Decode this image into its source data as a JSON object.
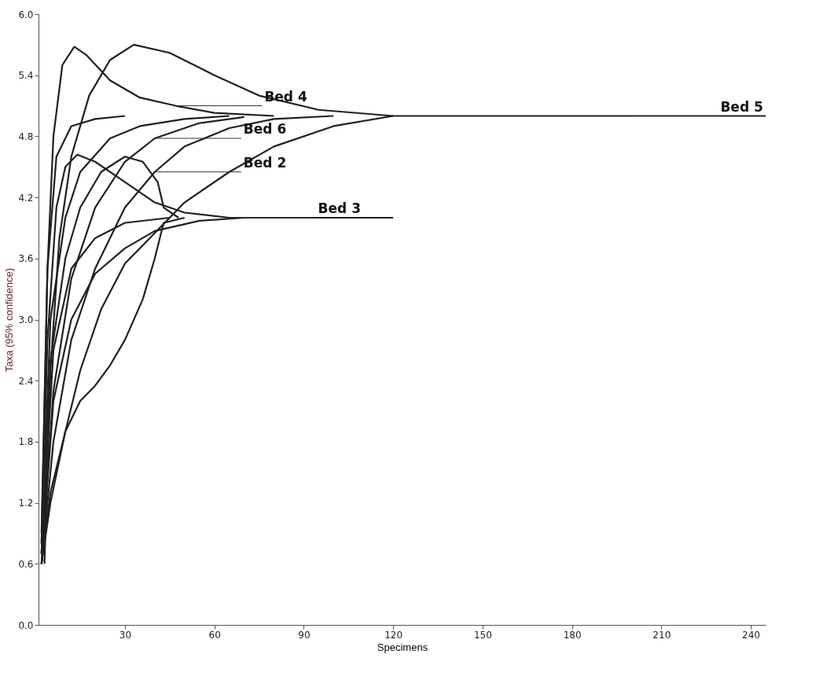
{
  "chart_data": {
    "type": "line",
    "xlabel": "Specimens",
    "ylabel": "Taxa (95% confidence)",
    "xlim": [
      1,
      245
    ],
    "ylim": [
      0,
      6
    ],
    "xticks": [
      30,
      60,
      90,
      120,
      150,
      180,
      210,
      240
    ],
    "yticks": [
      {
        "value": 0,
        "label": "0.0"
      },
      {
        "value": 0.6,
        "label": "0.6"
      },
      {
        "value": 1.2,
        "label": "1.2"
      },
      {
        "value": 1.8,
        "label": "1.8"
      },
      {
        "value": 2.4,
        "label": "2.4"
      },
      {
        "value": 3,
        "label": "3.0"
      },
      {
        "value": 3.6,
        "label": "3.6"
      },
      {
        "value": 4.2,
        "label": "4.2"
      },
      {
        "value": 4.8,
        "label": "4.8"
      },
      {
        "value": 5.4,
        "label": "5.4"
      },
      {
        "value": 6,
        "label": "6.0"
      }
    ],
    "grid": false,
    "legend": false,
    "marker": "none",
    "line_style": "solid",
    "series": [
      {
        "color": "#202020",
        "x": [
          2,
          4,
          6,
          9,
          13,
          17,
          25,
          35,
          47,
          60,
          80
        ],
        "values": [
          0.8,
          3.5,
          4.8,
          5.5,
          5.68,
          5.6,
          5.35,
          5.18,
          5.1,
          5.03,
          5.0
        ]
      },
      {
        "color": "#202020",
        "x": [
          3,
          5,
          8,
          12,
          18,
          25,
          33,
          45,
          60,
          75,
          95,
          120
        ],
        "values": [
          0.6,
          2.5,
          3.8,
          4.6,
          5.2,
          5.55,
          5.7,
          5.62,
          5.4,
          5.2,
          5.06,
          5.0
        ]
      },
      {
        "color": "#202020",
        "x": [
          2,
          4,
          7,
          10,
          14,
          20,
          30,
          40,
          50,
          65,
          120
        ],
        "values": [
          0.8,
          2.8,
          4.1,
          4.5,
          4.62,
          4.55,
          4.35,
          4.15,
          4.05,
          4.0,
          4.0
        ]
      },
      {
        "color": "#202020",
        "x": [
          2,
          5,
          10,
          15,
          22,
          30,
          36,
          41,
          43,
          48
        ],
        "values": [
          0.7,
          2.6,
          3.6,
          4.1,
          4.45,
          4.6,
          4.55,
          4.35,
          4.1,
          4.0
        ]
      },
      {
        "color": "#202020",
        "x": [
          2,
          5,
          10,
          15,
          20,
          25,
          30,
          36,
          40,
          43,
          50
        ],
        "values": [
          0.6,
          1.3,
          1.9,
          2.2,
          2.35,
          2.55,
          2.8,
          3.2,
          3.6,
          3.95,
          4.0
        ]
      },
      {
        "color": "#202020",
        "x": [
          2,
          6,
          12,
          20,
          30,
          45
        ],
        "values": [
          0.7,
          2.7,
          3.5,
          3.8,
          3.95,
          4.0
        ]
      },
      {
        "color": "#202020",
        "x": [
          2,
          6,
          12,
          20,
          30,
          40,
          55,
          70
        ],
        "values": [
          0.6,
          2.2,
          3.0,
          3.45,
          3.7,
          3.87,
          3.97,
          4.0
        ]
      },
      {
        "color": "#202020",
        "x": [
          2,
          4,
          7,
          12,
          20,
          30
        ],
        "values": [
          0.9,
          3.5,
          4.6,
          4.9,
          4.97,
          5.0
        ]
      },
      {
        "color": "#202020",
        "x": [
          2,
          5,
          10,
          15,
          25,
          35,
          50,
          65
        ],
        "values": [
          0.7,
          3.0,
          4.0,
          4.45,
          4.78,
          4.9,
          4.97,
          5.0
        ]
      },
      {
        "color": "#202020",
        "x": [
          2,
          6,
          12,
          20,
          30,
          40,
          55,
          70
        ],
        "values": [
          0.6,
          2.3,
          3.4,
          4.1,
          4.55,
          4.78,
          4.93,
          4.99
        ]
      },
      {
        "color": "#202020",
        "x": [
          2,
          6,
          12,
          20,
          30,
          40,
          50,
          65,
          80,
          100
        ],
        "values": [
          0.6,
          1.8,
          2.8,
          3.5,
          4.1,
          4.45,
          4.7,
          4.88,
          4.97,
          5.0
        ]
      },
      {
        "color": "#202020",
        "x": [
          2,
          5,
          10,
          15,
          22,
          30,
          40,
          50,
          65,
          80,
          100,
          120,
          245
        ],
        "values": [
          0.6,
          1.2,
          1.9,
          2.5,
          3.1,
          3.55,
          3.85,
          4.15,
          4.45,
          4.7,
          4.9,
          5.0,
          5.0
        ]
      }
    ],
    "annotations": [
      {
        "text": "Bed 4",
        "x": 47,
        "y": 5.1
      },
      {
        "text": "Bed 5",
        "x": 200,
        "y": 5.0
      },
      {
        "text": "Bed 6",
        "x": 40,
        "y": 4.78
      },
      {
        "text": "Bed 2",
        "x": 40,
        "y": 4.45
      },
      {
        "text": "Bed 3",
        "x": 65,
        "y": 4.0
      }
    ]
  }
}
